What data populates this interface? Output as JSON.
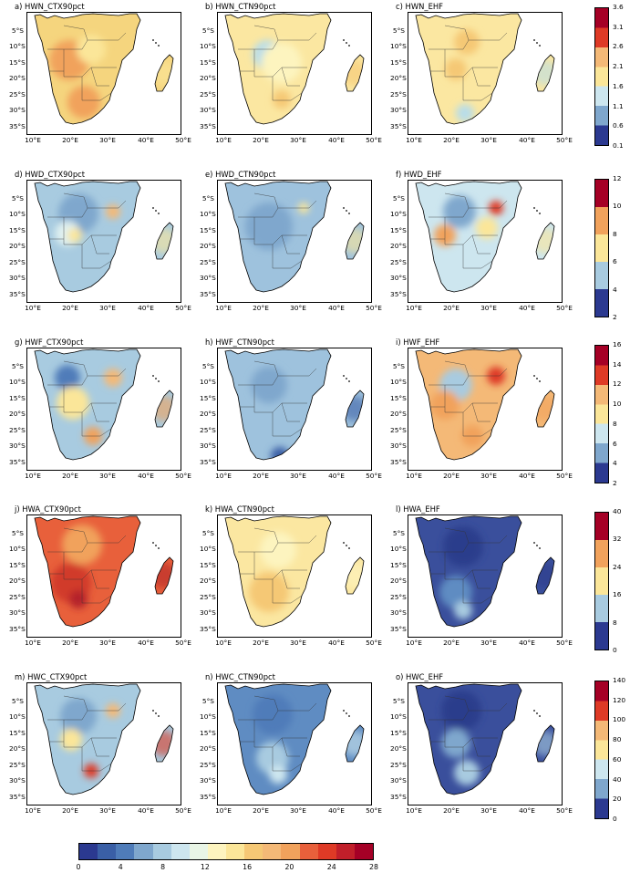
{
  "lat_labels": [
    "5°S",
    "10°S",
    "15°S",
    "20°S",
    "25°S",
    "30°S",
    "35°S"
  ],
  "lon_labels": [
    "10°E",
    "20°E",
    "30°E",
    "40°E",
    "50°E"
  ],
  "panels": [
    {
      "title": "a) HWN_CTX90pct",
      "scale": "a",
      "base": "#f5d57e",
      "blobs": [
        {
          "c": "#f1a25c",
          "x": 46,
          "y": 52,
          "r": 22
        },
        {
          "c": "#de3a26",
          "x": 58,
          "y": 100,
          "r": 10
        },
        {
          "c": "#f1a25c",
          "x": 62,
          "y": 98,
          "r": 18
        },
        {
          "c": "#fbe699",
          "x": 70,
          "y": 40,
          "r": 16
        }
      ]
    },
    {
      "title": "b) HWN_CTN90pct",
      "scale": "a",
      "base": "#fbe7a1",
      "blobs": [
        {
          "c": "#b9dde8",
          "x": 54,
          "y": 46,
          "r": 16
        },
        {
          "c": "#fdf4bf",
          "x": 70,
          "y": 55,
          "r": 22
        },
        {
          "c": "#f5c875",
          "x": 70,
          "y": 95,
          "r": 10
        }
      ]
    },
    {
      "title": "c) HWN_EHF",
      "scale": "a",
      "base": "#fbe7a1",
      "blobs": [
        {
          "c": "#f5c875",
          "x": 64,
          "y": 32,
          "r": 14
        },
        {
          "c": "#f5c875",
          "x": 52,
          "y": 62,
          "r": 12
        },
        {
          "c": "#b9dde8",
          "x": 62,
          "y": 110,
          "r": 10
        }
      ]
    },
    {
      "title": "d) HWD_CTX90pct",
      "scale": "b",
      "base": "#a8cbe0",
      "blobs": [
        {
          "c": "#7fa7cd",
          "x": 56,
          "y": 36,
          "r": 22
        },
        {
          "c": "#f4b977",
          "x": 94,
          "y": 34,
          "r": 8
        },
        {
          "c": "#dff0f0",
          "x": 44,
          "y": 58,
          "r": 14
        },
        {
          "c": "#fbe699",
          "x": 52,
          "y": 60,
          "r": 8
        }
      ]
    },
    {
      "title": "e) HWD_CTN90pct",
      "scale": "b",
      "base": "#9ec2dd",
      "blobs": [
        {
          "c": "#7fa7cd",
          "x": 56,
          "y": 50,
          "r": 26
        },
        {
          "c": "#fbe699",
          "x": 94,
          "y": 30,
          "r": 6
        }
      ]
    },
    {
      "title": "f) HWD_EHF",
      "scale": "b",
      "base": "#cde6ef",
      "blobs": [
        {
          "c": "#7fa7cd",
          "x": 56,
          "y": 34,
          "r": 18
        },
        {
          "c": "#de3a26",
          "x": 96,
          "y": 30,
          "r": 8
        },
        {
          "c": "#f1a25c",
          "x": 40,
          "y": 60,
          "r": 12
        },
        {
          "c": "#fbe699",
          "x": 86,
          "y": 52,
          "r": 12
        }
      ]
    },
    {
      "title": "g) HWF_CTX90pct",
      "scale": "c",
      "base": "#a8cbe0",
      "blobs": [
        {
          "c": "#4f7cb9",
          "x": 44,
          "y": 32,
          "r": 14
        },
        {
          "c": "#f4b977",
          "x": 94,
          "y": 32,
          "r": 10
        },
        {
          "c": "#fbe699",
          "x": 50,
          "y": 60,
          "r": 18
        },
        {
          "c": "#f1a25c",
          "x": 72,
          "y": 96,
          "r": 10
        }
      ]
    },
    {
      "title": "h) HWF_CTN90pct",
      "scale": "c",
      "base": "#9ec2dd",
      "blobs": [
        {
          "c": "#7fa7cd",
          "x": 56,
          "y": 40,
          "r": 20
        },
        {
          "c": "#3a5fa6",
          "x": 68,
          "y": 118,
          "r": 10
        }
      ]
    },
    {
      "title": "i) HWF_EHF",
      "scale": "c",
      "base": "#f4b977",
      "blobs": [
        {
          "c": "#a8cbe0",
          "x": 52,
          "y": 40,
          "r": 18
        },
        {
          "c": "#de3a26",
          "x": 96,
          "y": 30,
          "r": 10
        },
        {
          "c": "#f1a25c",
          "x": 40,
          "y": 62,
          "r": 16
        },
        {
          "c": "#f1a25c",
          "x": 70,
          "y": 96,
          "r": 12
        }
      ]
    },
    {
      "title": "j) HWA_CTX90pct",
      "scale": "d",
      "base": "#e8603b",
      "blobs": [
        {
          "c": "#f1a25c",
          "x": 60,
          "y": 32,
          "r": 22
        },
        {
          "c": "#d13a2c",
          "x": 48,
          "y": 74,
          "r": 22
        },
        {
          "c": "#b4242a",
          "x": 56,
          "y": 92,
          "r": 10
        }
      ]
    },
    {
      "title": "k) HWA_CTN90pct",
      "scale": "d",
      "base": "#fbe7a1",
      "blobs": [
        {
          "c": "#f5c875",
          "x": 56,
          "y": 84,
          "r": 22
        },
        {
          "c": "#fdf4bf",
          "x": 66,
          "y": 38,
          "r": 20
        }
      ]
    },
    {
      "title": "l) HWA_EHF",
      "scale": "d",
      "base": "#3a4f9c",
      "blobs": [
        {
          "c": "#5f8cc2",
          "x": 52,
          "y": 84,
          "r": 18
        },
        {
          "c": "#a8cbe0",
          "x": 60,
          "y": 104,
          "r": 10
        },
        {
          "c": "#2c3c8c",
          "x": 60,
          "y": 34,
          "r": 22
        }
      ]
    },
    {
      "title": "m) HWC_CTX90pct",
      "scale": "e",
      "base": "#a8cbe0",
      "blobs": [
        {
          "c": "#7fa7cd",
          "x": 56,
          "y": 36,
          "r": 20
        },
        {
          "c": "#f4b977",
          "x": 94,
          "y": 30,
          "r": 8
        },
        {
          "c": "#fbe699",
          "x": 48,
          "y": 62,
          "r": 12
        },
        {
          "c": "#de3a26",
          "x": 70,
          "y": 96,
          "r": 8
        }
      ]
    },
    {
      "title": "n) HWC_CTN90pct",
      "scale": "e",
      "base": "#5f8cc2",
      "blobs": [
        {
          "c": "#4f7cb9",
          "x": 60,
          "y": 34,
          "r": 22
        },
        {
          "c": "#a8cbe0",
          "x": 60,
          "y": 82,
          "r": 18
        },
        {
          "c": "#cde6ef",
          "x": 66,
          "y": 100,
          "r": 10
        }
      ]
    },
    {
      "title": "o) HWC_EHF",
      "scale": "e",
      "base": "#3a4f9c",
      "blobs": [
        {
          "c": "#2c3c8c",
          "x": 58,
          "y": 30,
          "r": 22
        },
        {
          "c": "#7fa7cd",
          "x": 52,
          "y": 66,
          "r": 16
        },
        {
          "c": "#a8cbe0",
          "x": 64,
          "y": 98,
          "r": 14
        }
      ]
    }
  ],
  "colorbars": [
    {
      "id": "a",
      "ticks": [
        "3.6",
        "3.1",
        "2.6",
        "2.1",
        "1.6",
        "1.1",
        "0.6",
        "0.1"
      ]
    },
    {
      "id": "b",
      "ticks": [
        "12",
        "10",
        "8",
        "6",
        "4",
        "2"
      ]
    },
    {
      "id": "c",
      "ticks": [
        "16",
        "14",
        "12",
        "10",
        "8",
        "6",
        "4",
        "2"
      ]
    },
    {
      "id": "d",
      "ticks": [
        "40",
        "32",
        "24",
        "16",
        "8",
        "0"
      ]
    },
    {
      "id": "e",
      "ticks": [
        "140",
        "120",
        "100",
        "80",
        "60",
        "40",
        "20",
        "0"
      ]
    }
  ],
  "bottom_colorbar": {
    "ticks": [
      "0",
      "4",
      "8",
      "12",
      "16",
      "20",
      "24",
      "28"
    ]
  },
  "palette": [
    "#2b3990",
    "#3a5fa6",
    "#4f7cb9",
    "#7fa7cd",
    "#a8cbe0",
    "#cde6ef",
    "#e9f5e6",
    "#fdf4bf",
    "#fbe699",
    "#f5c875",
    "#f4b977",
    "#f1a25c",
    "#e8603b",
    "#de3a26",
    "#c11f2a",
    "#a50026"
  ]
}
